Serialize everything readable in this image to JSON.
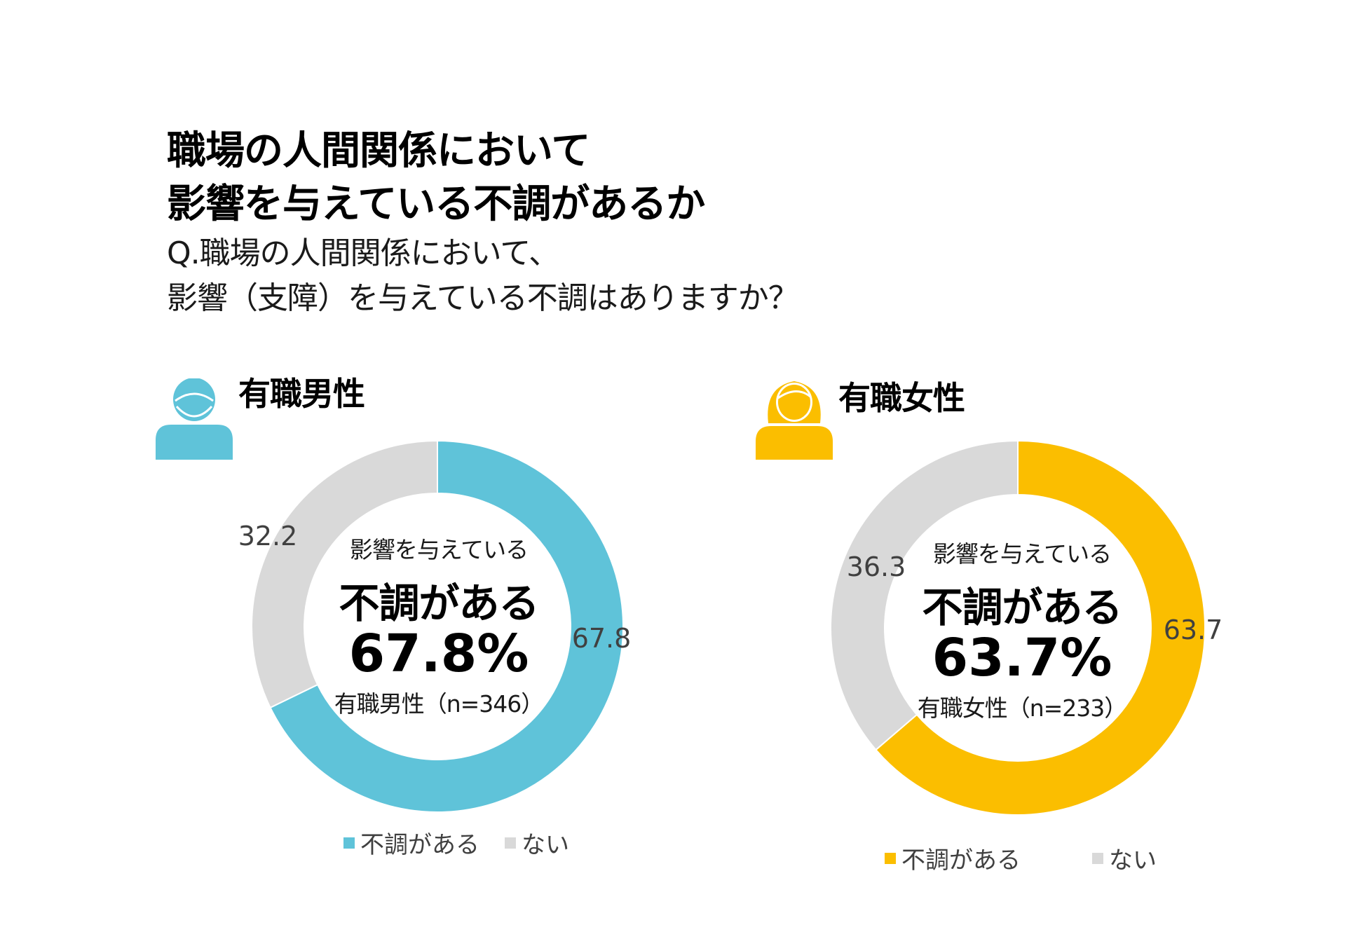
{
  "title": {
    "line1": "職場の人間関係において",
    "line2": "影響を与えている不調があるか"
  },
  "question": {
    "line1": "Q.職場の人間関係において、",
    "line2": "影響（支障）を与えている不調はありますか？"
  },
  "colors": {
    "male_accent": "#5FC3D9",
    "female_accent": "#FBBE00",
    "none": "#D9D9D9",
    "label_text": "#404040"
  },
  "panels": {
    "male": {
      "label": "有職男性",
      "icon": "male-person-icon",
      "center_line1": "影響を与えている",
      "center_line2": "不調がある",
      "center_value": "67.8%",
      "center_sample": "有職男性（n=346）",
      "legend_yes": "不調がある",
      "legend_no": "ない"
    },
    "female": {
      "label": "有職女性",
      "icon": "female-person-icon",
      "center_line1": "影響を与えている",
      "center_line2": "不調がある",
      "center_value": "63.7%",
      "center_sample": "有職女性（n=233）",
      "legend_yes": "不調がある",
      "legend_no": "ない"
    }
  },
  "chart_data": [
    {
      "type": "pie",
      "variant": "donut",
      "categories": [
        "不調がある",
        "ない"
      ],
      "values": [
        67.8,
        32.2
      ],
      "value_labels": [
        "67.8",
        "32.2"
      ],
      "colors": [
        "#5FC3D9",
        "#D9D9D9"
      ],
      "legend_position": "bottom"
    },
    {
      "type": "pie",
      "variant": "donut",
      "categories": [
        "不調がある",
        "ない"
      ],
      "values": [
        63.7,
        36.3
      ],
      "value_labels": [
        "63.7",
        "36.3"
      ],
      "colors": [
        "#FBBE00",
        "#D9D9D9"
      ],
      "legend_position": "bottom"
    }
  ]
}
